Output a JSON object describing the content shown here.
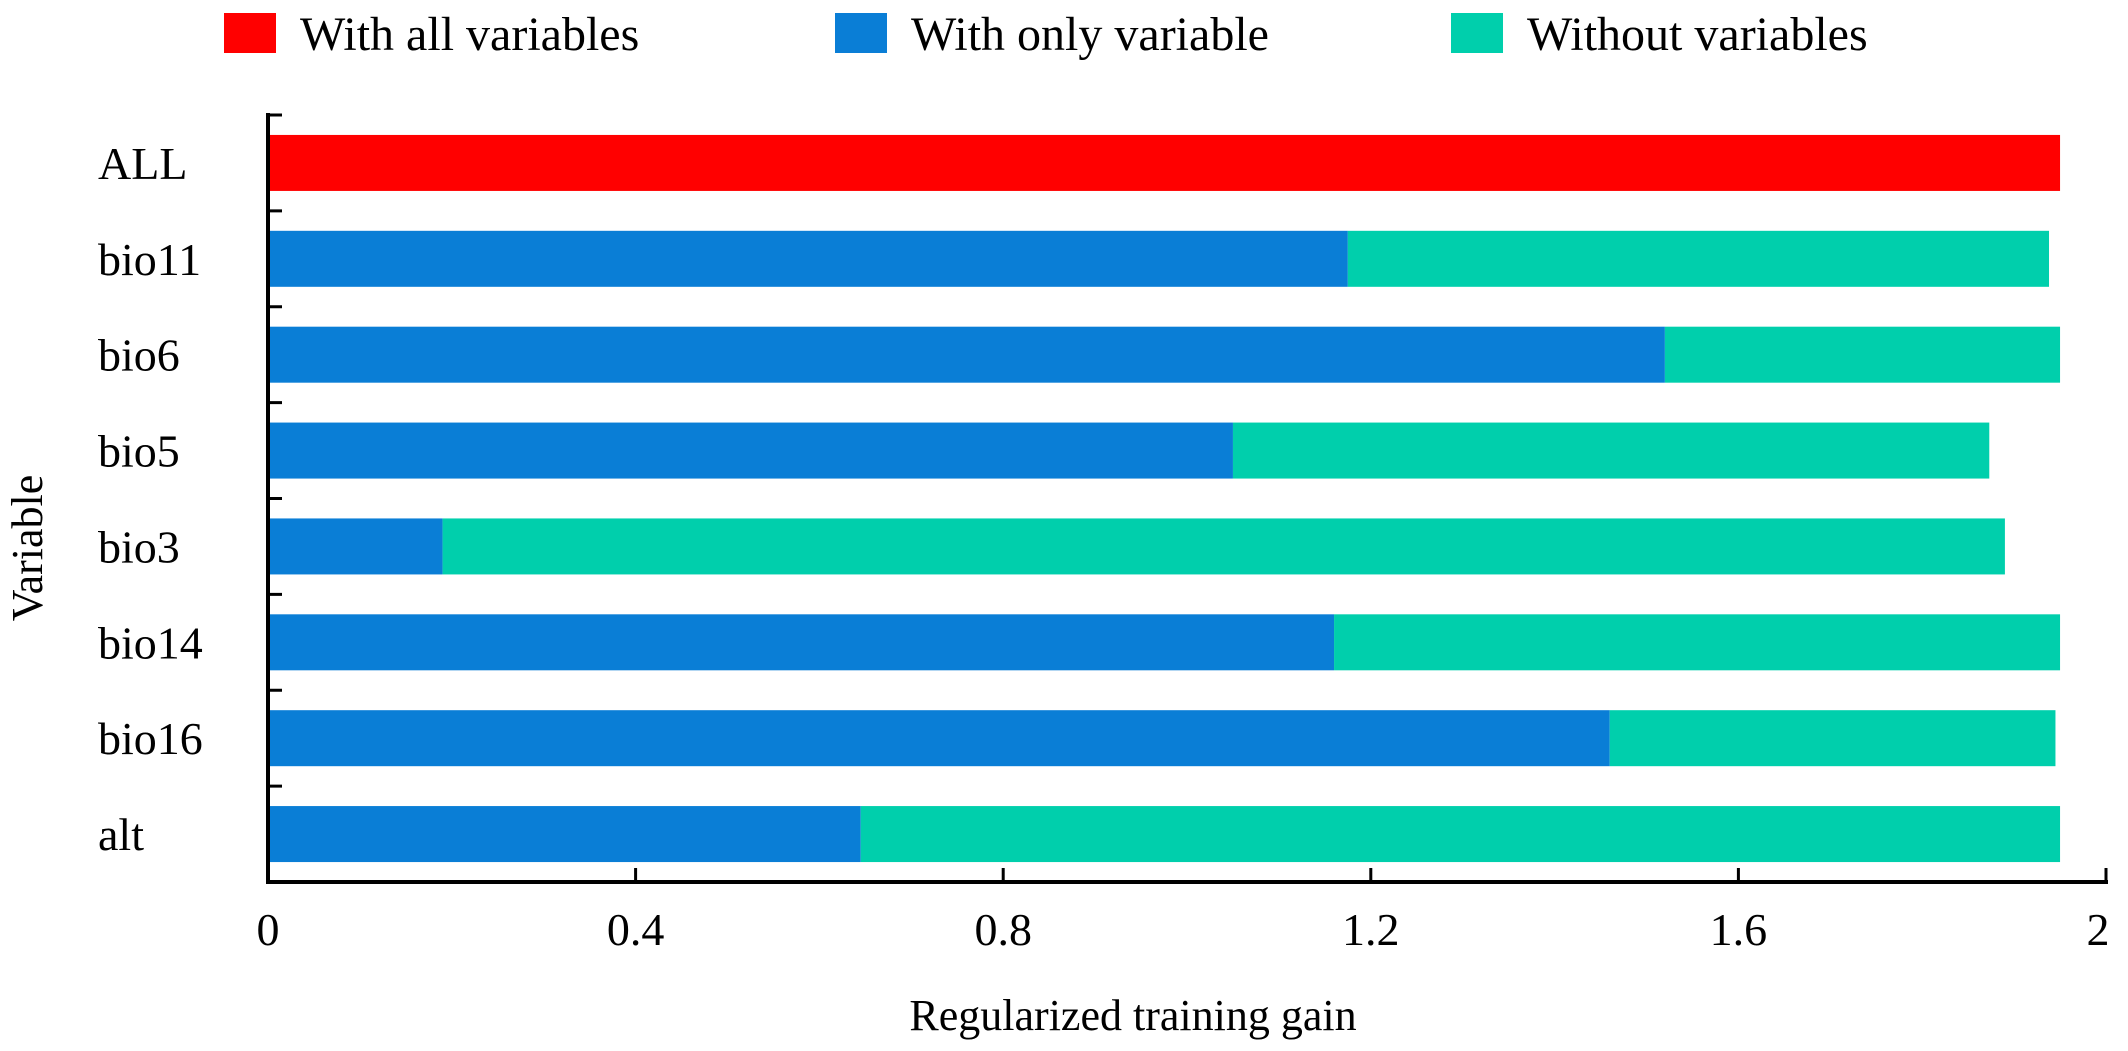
{
  "chart_data": {
    "type": "bar",
    "stacked": true,
    "orientation": "horizontal",
    "categories": [
      "ALL",
      "bio11",
      "bio6",
      "bio5",
      "bio3",
      "bio14",
      "bio16",
      "alt"
    ],
    "series": [
      {
        "name": "With all variables",
        "color": "#ff0000",
        "values": [
          1.95,
          null,
          null,
          null,
          null,
          null,
          null,
          null
        ]
      },
      {
        "name": "With only variable",
        "color": "#0a7ed6",
        "values": [
          null,
          1.175,
          1.52,
          1.05,
          0.19,
          1.16,
          1.46,
          0.645
        ]
      },
      {
        "name": "Without variables",
        "color": "#00cfac",
        "values": [
          null,
          0.763,
          0.43,
          0.823,
          1.7,
          0.79,
          0.485,
          1.305
        ]
      }
    ],
    "totals": [
      1.95,
      1.938,
      1.95,
      1.873,
      1.89,
      1.95,
      1.945,
      1.95
    ],
    "xlabel": "Regularized training gain",
    "ylabel": "Variable",
    "xlim": [
      0,
      2
    ],
    "xticks": [
      "0",
      "0.4",
      "0.8",
      "1.2",
      "1.6",
      "2"
    ],
    "xtick_values": [
      0,
      0.4,
      0.8,
      1.2,
      1.6,
      2
    ],
    "legend_position": "top",
    "grid": false
  }
}
